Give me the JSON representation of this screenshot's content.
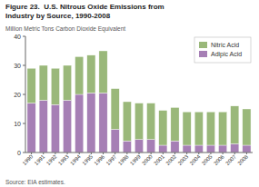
{
  "chart_data": {
    "type": "bar",
    "stacked": true,
    "title": [
      "Figure 23.  U.S. Nitrous Oxide Emissions from",
      "Industry by Source, 1990-2008"
    ],
    "subtitle": "Million Metric Tons Carbon Dioxide Equivalent",
    "annotations": [
      "Source: EIA estimates."
    ],
    "categories": [
      "1990",
      "1991",
      "1992",
      "1993",
      "1994",
      "1995",
      "1996",
      "1997",
      "1998",
      "1999",
      "2000",
      "2001",
      "2002",
      "2003",
      "2004",
      "2005",
      "2006",
      "2007",
      "2008"
    ],
    "series": [
      {
        "name": "Adipic Acid",
        "color": "#a67fb5",
        "values": [
          17.0,
          18.0,
          16.5,
          18.0,
          20.0,
          20.5,
          20.5,
          8.0,
          4.0,
          4.5,
          4.5,
          2.5,
          4.0,
          2.5,
          2.5,
          2.5,
          2.5,
          3.0,
          2.5
        ]
      },
      {
        "name": "Nitric Acid",
        "color": "#9ab87a",
        "values": [
          12.0,
          12.0,
          12.5,
          12.0,
          13.0,
          13.0,
          14.5,
          14.0,
          13.5,
          12.5,
          12.5,
          12.0,
          11.5,
          11.5,
          11.5,
          11.5,
          11.5,
          13.0,
          12.5
        ]
      }
    ],
    "ylim": [
      0,
      40
    ],
    "yticks": [
      0,
      10,
      20,
      30,
      40
    ],
    "grid": false,
    "legend": "upper right"
  }
}
